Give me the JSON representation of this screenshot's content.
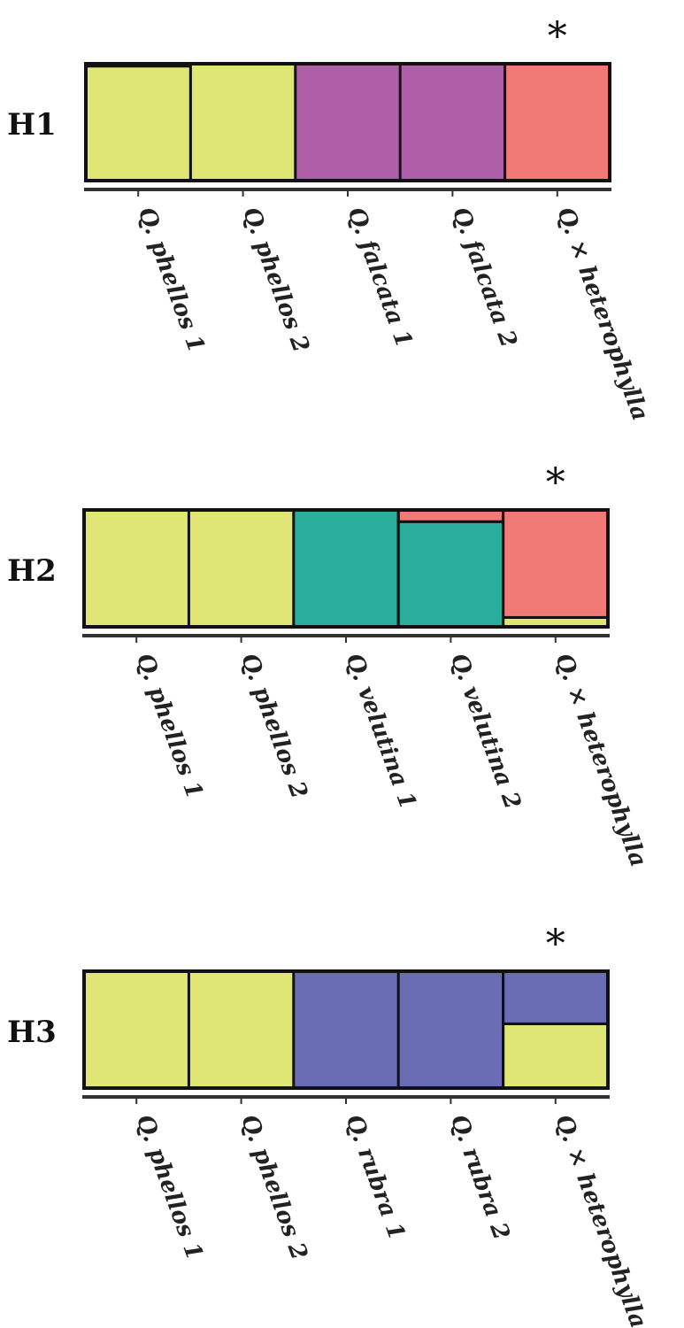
{
  "chart_data": [
    {
      "type": "bar",
      "stacked": true,
      "normalized": true,
      "title": "H1",
      "marker": "*",
      "marker_category_index": 4,
      "categories": [
        "Q. phellos 1",
        "Q. phellos 2",
        "Q. falcata 1",
        "Q. falcata 2",
        "Q. × heterophylla"
      ],
      "ylim": [
        0,
        1
      ],
      "series": [
        {
          "color": "#DFE673",
          "values": [
            0.98,
            1.0,
            0.0,
            0.0,
            0.0
          ]
        },
        {
          "color": "#AF5FA8",
          "values": [
            0.0,
            0.0,
            1.0,
            1.0,
            0.0
          ]
        },
        {
          "color": "#F27A76",
          "values": [
            0.02,
            0.0,
            0.0,
            0.0,
            1.0
          ]
        }
      ]
    },
    {
      "type": "bar",
      "stacked": true,
      "normalized": true,
      "title": "H2",
      "marker": "*",
      "marker_category_index": 4,
      "categories": [
        "Q. phellos 1",
        "Q. phellos 2",
        "Q. velutina 1",
        "Q. velutina 2",
        "Q. × heterophylla"
      ],
      "ylim": [
        0,
        1
      ],
      "series": [
        {
          "color": "#DFE673",
          "values": [
            1.0,
            1.0,
            0.0,
            0.0,
            0.08
          ]
        },
        {
          "color": "#2AAE9C",
          "values": [
            0.0,
            0.0,
            1.0,
            0.9,
            0.0
          ]
        },
        {
          "color": "#F27A76",
          "values": [
            0.0,
            0.0,
            0.0,
            0.1,
            0.92
          ]
        }
      ]
    },
    {
      "type": "bar",
      "stacked": true,
      "normalized": true,
      "title": "H3",
      "marker": "*",
      "marker_category_index": 4,
      "categories": [
        "Q. phellos 1",
        "Q. phellos 2",
        "Q. rubra 1",
        "Q. rubra 2",
        "Q. × heterophylla"
      ],
      "ylim": [
        0,
        1
      ],
      "series": [
        {
          "color": "#DFE673",
          "values": [
            1.0,
            1.0,
            0.0,
            0.0,
            0.55
          ]
        },
        {
          "color": "#6A6DB3",
          "values": [
            0.0,
            0.0,
            1.0,
            1.0,
            0.45
          ]
        }
      ]
    }
  ]
}
